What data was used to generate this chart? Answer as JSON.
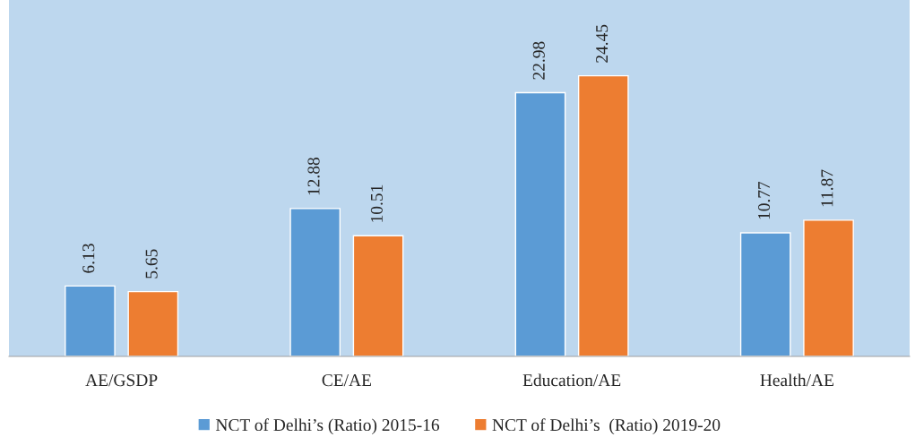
{
  "chart_data": {
    "type": "bar",
    "categories": [
      "AE/GSDP",
      "CE/AE",
      "Education/AE",
      "Health/AE"
    ],
    "series": [
      {
        "name": "NCT of Delhi’s (Ratio) 2015-16",
        "color": "#5b9bd5",
        "values": [
          6.13,
          12.88,
          22.98,
          10.77
        ]
      },
      {
        "name": "NCT of Delhi’s  (Ratio) 2019-20",
        "color": "#ed7d31",
        "values": [
          5.65,
          10.51,
          24.45,
          11.87
        ]
      }
    ],
    "data_labels": true,
    "legend": "bottom",
    "grid": false
  }
}
